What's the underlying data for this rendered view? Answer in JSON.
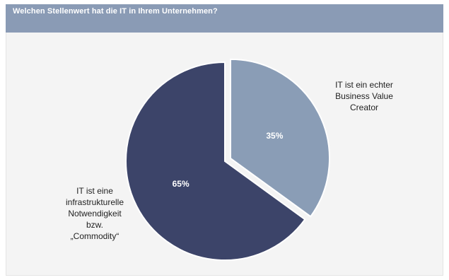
{
  "header": {
    "title": "Welchen Stellenwert hat die IT in Ihrem Unternehmen?"
  },
  "colors": {
    "header_bg": "#8a9bb5",
    "slice_light": "#8a9db6",
    "slice_dark": "#3c4469",
    "background": "#f4f4f4"
  },
  "chart_data": {
    "type": "pie",
    "title": "Welchen Stellenwert hat die IT in Ihrem Unternehmen?",
    "slices": [
      {
        "label_lines": [
          "IT ist ein echter",
          "Business Value",
          "Creator"
        ],
        "value": 35,
        "value_label": "35%",
        "color": "#8a9db6",
        "exploded": true
      },
      {
        "label_lines": [
          "IT ist eine",
          "infrastrukturelle",
          "Notwendigkeit",
          "bzw.",
          "„Commodity“"
        ],
        "value": 65,
        "value_label": "65%",
        "color": "#3c4469",
        "exploded": false
      }
    ],
    "legend": "none"
  }
}
